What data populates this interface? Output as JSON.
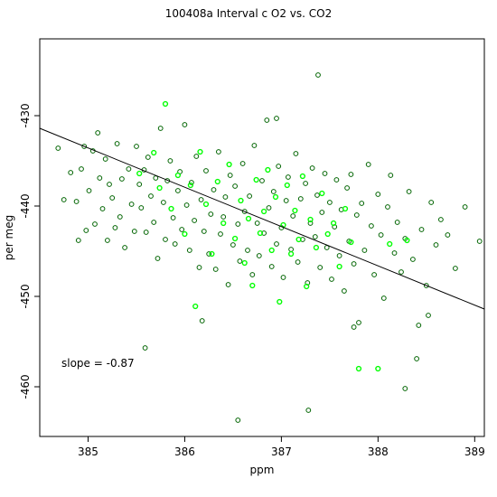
{
  "chart_data": {
    "type": "scatter",
    "title": "100408a   Interval c O2 vs. CO2",
    "xlabel": "ppm",
    "ylabel": "per meg",
    "xlim": [
      384.5,
      389.1
    ],
    "ylim": [
      -465.5,
      -421.5
    ],
    "xticks": [
      385,
      386,
      387,
      388,
      389
    ],
    "yticks": [
      -460,
      -450,
      -440,
      -430
    ],
    "xtick_labels": [
      "385",
      "386",
      "387",
      "388",
      "389"
    ],
    "ytick_labels": [
      "-460",
      "-450",
      "-440",
      "-430"
    ],
    "grid": false,
    "legend": null,
    "annotation": "slope =  -0.87",
    "colors": {
      "dark_points": "#006400",
      "bright_points": "#00ff00",
      "regression_line": "#000000"
    },
    "regression_line": {
      "slope": -0.87,
      "x": [
        384.5,
        389.1
      ],
      "y": [
        -431.4,
        -451.4
      ]
    },
    "series": [
      {
        "color": "#006400",
        "points": [
          [
            384.69,
            -433.6
          ],
          [
            384.75,
            -439.3
          ],
          [
            384.82,
            -436.3
          ],
          [
            384.88,
            -439.5
          ],
          [
            384.9,
            -443.8
          ],
          [
            384.93,
            -435.9
          ],
          [
            384.96,
            -433.4
          ],
          [
            384.98,
            -442.7
          ],
          [
            385.01,
            -438.3
          ],
          [
            385.05,
            -433.9
          ],
          [
            385.07,
            -442.0
          ],
          [
            385.1,
            -431.9
          ],
          [
            385.12,
            -436.9
          ],
          [
            385.15,
            -440.3
          ],
          [
            385.18,
            -434.8
          ],
          [
            385.2,
            -443.8
          ],
          [
            385.22,
            -437.6
          ],
          [
            385.25,
            -439.1
          ],
          [
            385.28,
            -442.4
          ],
          [
            385.3,
            -433.1
          ],
          [
            385.33,
            -441.2
          ],
          [
            385.35,
            -437.0
          ],
          [
            385.38,
            -444.6
          ],
          [
            385.42,
            -435.9
          ],
          [
            385.45,
            -439.8
          ],
          [
            385.48,
            -442.8
          ],
          [
            385.5,
            -433.4
          ],
          [
            385.53,
            -437.6
          ],
          [
            385.55,
            -440.2
          ],
          [
            385.58,
            -436.0
          ],
          [
            385.6,
            -442.9
          ],
          [
            385.62,
            -434.6
          ],
          [
            385.65,
            -438.9
          ],
          [
            385.68,
            -441.8
          ],
          [
            385.7,
            -436.9
          ],
          [
            385.72,
            -445.8
          ],
          [
            385.75,
            -431.4
          ],
          [
            385.78,
            -439.6
          ],
          [
            385.8,
            -443.7
          ],
          [
            385.82,
            -437.2
          ],
          [
            385.85,
            -435.0
          ],
          [
            385.88,
            -441.3
          ],
          [
            385.9,
            -444.2
          ],
          [
            385.93,
            -438.3
          ],
          [
            385.95,
            -436.2
          ],
          [
            385.97,
            -442.6
          ],
          [
            386.0,
            -431.0
          ],
          [
            386.02,
            -439.9
          ],
          [
            386.05,
            -444.9
          ],
          [
            386.07,
            -437.4
          ],
          [
            386.1,
            -441.6
          ],
          [
            386.12,
            -434.5
          ],
          [
            386.15,
            -446.8
          ],
          [
            386.17,
            -439.3
          ],
          [
            386.2,
            -442.8
          ],
          [
            386.22,
            -436.1
          ],
          [
            386.25,
            -445.3
          ],
          [
            386.27,
            -440.9
          ],
          [
            386.3,
            -438.2
          ],
          [
            386.32,
            -447.0
          ],
          [
            386.35,
            -434.0
          ],
          [
            386.37,
            -443.1
          ],
          [
            386.4,
            -441.2
          ],
          [
            386.42,
            -439.0
          ],
          [
            386.45,
            -448.7
          ],
          [
            386.47,
            -436.6
          ],
          [
            386.5,
            -444.3
          ],
          [
            386.52,
            -437.8
          ],
          [
            386.55,
            -442.0
          ],
          [
            386.57,
            -446.1
          ],
          [
            386.6,
            -435.3
          ],
          [
            386.62,
            -440.6
          ],
          [
            386.65,
            -444.9
          ],
          [
            386.67,
            -438.9
          ],
          [
            386.7,
            -447.6
          ],
          [
            386.72,
            -433.3
          ],
          [
            386.75,
            -441.9
          ],
          [
            386.77,
            -445.5
          ],
          [
            386.8,
            -437.2
          ],
          [
            386.82,
            -443.0
          ],
          [
            386.85,
            -430.5
          ],
          [
            386.87,
            -440.2
          ],
          [
            386.9,
            -446.7
          ],
          [
            386.92,
            -438.4
          ],
          [
            386.95,
            -444.2
          ],
          [
            386.97,
            -435.6
          ],
          [
            387.0,
            -442.4
          ],
          [
            387.02,
            -447.9
          ],
          [
            387.05,
            -439.4
          ],
          [
            387.07,
            -436.8
          ],
          [
            387.1,
            -444.8
          ],
          [
            387.12,
            -441.1
          ],
          [
            387.15,
            -434.2
          ],
          [
            387.17,
            -446.2
          ],
          [
            387.2,
            -439.2
          ],
          [
            387.22,
            -443.7
          ],
          [
            387.25,
            -437.5
          ],
          [
            387.27,
            -448.5
          ],
          [
            387.3,
            -441.9
          ],
          [
            387.32,
            -435.8
          ],
          [
            387.35,
            -443.4
          ],
          [
            387.37,
            -438.8
          ],
          [
            387.4,
            -446.8
          ],
          [
            387.42,
            -440.7
          ],
          [
            387.45,
            -436.4
          ],
          [
            387.47,
            -444.6
          ],
          [
            387.5,
            -439.6
          ],
          [
            387.52,
            -448.1
          ],
          [
            387.55,
            -442.3
          ],
          [
            387.57,
            -437.1
          ],
          [
            387.6,
            -445.5
          ],
          [
            387.62,
            -440.4
          ],
          [
            387.65,
            -449.4
          ],
          [
            387.68,
            -438.0
          ],
          [
            387.7,
            -443.9
          ],
          [
            387.72,
            -436.5
          ],
          [
            387.75,
            -446.4
          ],
          [
            387.78,
            -441.0
          ],
          [
            387.8,
            -452.9
          ],
          [
            387.83,
            -439.7
          ],
          [
            387.86,
            -444.9
          ],
          [
            387.9,
            -435.4
          ],
          [
            387.93,
            -442.2
          ],
          [
            387.96,
            -447.6
          ],
          [
            388.0,
            -438.7
          ],
          [
            388.03,
            -443.2
          ],
          [
            388.06,
            -450.2
          ],
          [
            388.1,
            -440.1
          ],
          [
            388.13,
            -436.6
          ],
          [
            388.17,
            -445.2
          ],
          [
            388.2,
            -441.8
          ],
          [
            388.24,
            -447.3
          ],
          [
            388.28,
            -443.6
          ],
          [
            388.32,
            -438.4
          ],
          [
            388.36,
            -445.9
          ],
          [
            388.4,
            -456.9
          ],
          [
            388.45,
            -442.6
          ],
          [
            388.5,
            -448.8
          ],
          [
            388.55,
            -439.6
          ],
          [
            388.6,
            -444.3
          ],
          [
            388.65,
            -441.5
          ],
          [
            388.72,
            -443.2
          ],
          [
            388.8,
            -446.9
          ],
          [
            388.9,
            -440.1
          ],
          [
            389.05,
            -443.9
          ],
          [
            385.59,
            -455.7
          ],
          [
            386.18,
            -452.7
          ],
          [
            386.55,
            -463.7
          ],
          [
            386.95,
            -430.3
          ],
          [
            387.28,
            -462.6
          ],
          [
            387.38,
            -425.5
          ],
          [
            387.75,
            -453.4
          ],
          [
            388.28,
            -460.2
          ],
          [
            388.42,
            -453.2
          ],
          [
            388.52,
            -452.1
          ]
        ]
      },
      {
        "color": "#00ff00",
        "points": [
          [
            385.53,
            -436.4
          ],
          [
            385.68,
            -434.1
          ],
          [
            385.74,
            -438.0
          ],
          [
            385.8,
            -428.7
          ],
          [
            385.86,
            -440.3
          ],
          [
            385.93,
            -436.6
          ],
          [
            386.0,
            -443.1
          ],
          [
            386.06,
            -437.7
          ],
          [
            386.11,
            -451.1
          ],
          [
            386.16,
            -434.0
          ],
          [
            386.22,
            -439.8
          ],
          [
            386.28,
            -445.3
          ],
          [
            386.34,
            -437.3
          ],
          [
            386.4,
            -441.9
          ],
          [
            386.46,
            -435.4
          ],
          [
            386.52,
            -443.6
          ],
          [
            386.58,
            -439.4
          ],
          [
            386.62,
            -446.3
          ],
          [
            386.66,
            -441.4
          ],
          [
            386.7,
            -448.8
          ],
          [
            386.74,
            -437.1
          ],
          [
            386.78,
            -443.0
          ],
          [
            386.82,
            -440.6
          ],
          [
            386.86,
            -436.0
          ],
          [
            386.9,
            -444.9
          ],
          [
            386.94,
            -439.0
          ],
          [
            386.98,
            -450.6
          ],
          [
            387.02,
            -442.1
          ],
          [
            387.06,
            -437.7
          ],
          [
            387.1,
            -445.3
          ],
          [
            387.14,
            -440.5
          ],
          [
            387.18,
            -443.7
          ],
          [
            387.22,
            -436.7
          ],
          [
            387.26,
            -448.9
          ],
          [
            387.3,
            -441.5
          ],
          [
            387.36,
            -444.6
          ],
          [
            387.42,
            -438.6
          ],
          [
            387.48,
            -443.1
          ],
          [
            387.54,
            -441.9
          ],
          [
            387.6,
            -446.7
          ],
          [
            387.66,
            -440.3
          ],
          [
            387.72,
            -444.0
          ],
          [
            387.8,
            -458.0
          ],
          [
            388.0,
            -458.0
          ],
          [
            388.12,
            -444.2
          ],
          [
            388.3,
            -443.8
          ]
        ]
      }
    ]
  }
}
